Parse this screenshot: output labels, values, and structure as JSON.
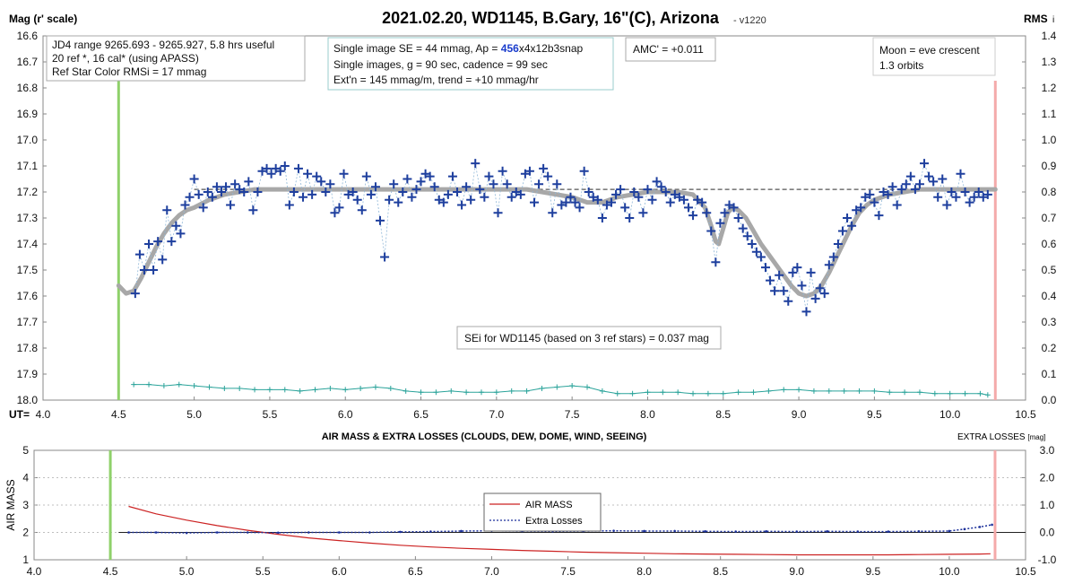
{
  "chart_data": [
    {
      "type": "scatter",
      "title": "2021.02.20, WD1145, B.Gary, 16\"(C), Arizona",
      "version": "- v1220",
      "ylabel": "Mag (r' scale)",
      "y2label": "RMS",
      "y2label_sub": "i",
      "xlabel": "UT=",
      "xlim": [
        4.0,
        10.5
      ],
      "ylim": [
        16.6,
        18.0
      ],
      "y2lim": [
        0.0,
        1.4
      ],
      "x_ticks": [
        "4.0",
        "4.5",
        "5.0",
        "5.5",
        "6.0",
        "6.5",
        "7.0",
        "7.5",
        "8.0",
        "8.5",
        "9.0",
        "9.5",
        "10.0",
        "10.5"
      ],
      "y_ticks": [
        "16.6",
        "16.7",
        "16.8",
        "16.9",
        "17.0",
        "17.1",
        "17.2",
        "17.3",
        "17.4",
        "17.5",
        "17.6",
        "17.7",
        "17.8",
        "17.9",
        "18.0"
      ],
      "y2_ticks": [
        "1.4",
        "1.3",
        "1.2",
        "1.1",
        "1.0",
        "0.9",
        "0.8",
        "0.7",
        "0.6",
        "0.5",
        "0.4",
        "0.3",
        "0.2",
        "0.1",
        "0.0"
      ],
      "reference_magnitude": 17.19,
      "start_marker_ut": 4.5,
      "end_marker_ut": 10.3,
      "annotations": {
        "jd_box": [
          "JD4 range 9265.693 - 9265.927, 5.8 hrs useful",
          " 20 ref *, 16 cal* (using APASS)",
          "Ref Star Color RMSi = 17 mmag"
        ],
        "se_line1_pre": "Single image SE = 44 mmag, Ap = ",
        "se_line1_ap": "456",
        "se_line1_post": "x4x12b3snap",
        "se_line2": "Single images, g = 90 sec, cadence = 99 sec",
        "se_line3": "Ext'n = 145 mmag/m, trend = +10 mmag/hr",
        "amc": "AMC' = +0.011",
        "moon": [
          "Moon = eve crescent",
          "1.3 orbits"
        ],
        "sei": "SEi for WD1145 (based on 3 ref stars) = 0.037 mag"
      },
      "series": [
        {
          "name": "WD1145 magnitude",
          "x": [
            4.61,
            4.64,
            4.67,
            4.7,
            4.73,
            4.76,
            4.79,
            4.82,
            4.85,
            4.88,
            4.91,
            4.94,
            4.97,
            5.0,
            5.03,
            5.06,
            5.09,
            5.12,
            5.15,
            5.18,
            5.21,
            5.24,
            5.27,
            5.3,
            5.33,
            5.36,
            5.39,
            5.42,
            5.45,
            5.48,
            5.51,
            5.54,
            5.57,
            5.6,
            5.63,
            5.66,
            5.69,
            5.72,
            5.75,
            5.78,
            5.81,
            5.84,
            5.87,
            5.9,
            5.93,
            5.96,
            5.99,
            6.02,
            6.05,
            6.08,
            6.11,
            6.14,
            6.17,
            6.2,
            6.23,
            6.26,
            6.29,
            6.32,
            6.35,
            6.38,
            6.41,
            6.44,
            6.47,
            6.5,
            6.53,
            6.56,
            6.59,
            6.62,
            6.65,
            6.68,
            6.71,
            6.74,
            6.77,
            6.8,
            6.83,
            6.86,
            6.89,
            6.92,
            6.95,
            6.98,
            7.01,
            7.04,
            7.07,
            7.1,
            7.13,
            7.16,
            7.19,
            7.22,
            7.25,
            7.28,
            7.31,
            7.34,
            7.37,
            7.4,
            7.43,
            7.46,
            7.49,
            7.52,
            7.55,
            7.58,
            7.61,
            7.64,
            7.67,
            7.7,
            7.73,
            7.76,
            7.79,
            7.82,
            7.85,
            7.88,
            7.91,
            7.94,
            7.97,
            8.0,
            8.03,
            8.06,
            8.09,
            8.12,
            8.15,
            8.18,
            8.21,
            8.24,
            8.27,
            8.3,
            8.33,
            8.36,
            8.39,
            8.42,
            8.45,
            8.48,
            8.51,
            8.54,
            8.57,
            8.6,
            8.63,
            8.66,
            8.69,
            8.72,
            8.75,
            8.78,
            8.81,
            8.84,
            8.87,
            8.9,
            8.93,
            8.96,
            8.99,
            9.02,
            9.05,
            9.08,
            9.11,
            9.14,
            9.17,
            9.2,
            9.23,
            9.26,
            9.29,
            9.32,
            9.35,
            9.38,
            9.41,
            9.44,
            9.47,
            9.5,
            9.53,
            9.56,
            9.59,
            9.62,
            9.65,
            9.68,
            9.71,
            9.74,
            9.77,
            9.8,
            9.83,
            9.86,
            9.89,
            9.92,
            9.95,
            9.98,
            10.01,
            10.04,
            10.07,
            10.1,
            10.13,
            10.16,
            10.19,
            10.22,
            10.25
          ],
          "y": [
            17.59,
            17.44,
            17.5,
            17.4,
            17.5,
            17.39,
            17.46,
            17.27,
            17.39,
            17.33,
            17.36,
            17.25,
            17.22,
            17.15,
            17.21,
            17.26,
            17.2,
            17.22,
            17.18,
            17.2,
            17.18,
            17.25,
            17.17,
            17.19,
            17.2,
            17.16,
            17.27,
            17.2,
            17.12,
            17.11,
            17.13,
            17.11,
            17.12,
            17.1,
            17.25,
            17.2,
            17.11,
            17.22,
            17.13,
            17.21,
            17.14,
            17.16,
            17.2,
            17.17,
            17.28,
            17.26,
            17.13,
            17.21,
            17.2,
            17.23,
            17.27,
            17.14,
            17.21,
            17.18,
            17.31,
            17.45,
            17.23,
            17.17,
            17.24,
            17.2,
            17.15,
            17.22,
            17.19,
            17.16,
            17.13,
            17.14,
            17.18,
            17.23,
            17.24,
            17.21,
            17.14,
            17.2,
            17.25,
            17.18,
            17.23,
            17.09,
            17.19,
            17.22,
            17.14,
            17.17,
            17.28,
            17.12,
            17.17,
            17.22,
            17.2,
            17.21,
            17.13,
            17.12,
            17.24,
            17.17,
            17.11,
            17.14,
            17.28,
            17.17,
            17.25,
            17.24,
            17.22,
            17.24,
            17.26,
            17.12,
            17.2,
            17.22,
            17.23,
            17.3,
            17.25,
            17.24,
            17.21,
            17.19,
            17.26,
            17.3,
            17.2,
            17.22,
            17.28,
            17.19,
            17.23,
            17.16,
            17.18,
            17.2,
            17.24,
            17.21,
            17.22,
            17.23,
            17.26,
            17.29,
            17.23,
            17.24,
            17.28,
            17.35,
            17.47,
            17.32,
            17.28,
            17.25,
            17.26,
            17.3,
            17.34,
            17.37,
            17.4,
            17.43,
            17.45,
            17.49,
            17.54,
            17.58,
            17.52,
            17.58,
            17.62,
            17.51,
            17.49,
            17.56,
            17.66,
            17.51,
            17.61,
            17.57,
            17.59,
            17.48,
            17.45,
            17.4,
            17.35,
            17.3,
            17.33,
            17.27,
            17.26,
            17.22,
            17.21,
            17.24,
            17.29,
            17.2,
            17.21,
            17.18,
            17.25,
            17.19,
            17.17,
            17.14,
            17.19,
            17.17,
            17.09,
            17.14,
            17.16,
            17.22,
            17.15,
            17.25,
            17.2,
            17.22,
            17.13,
            17.2,
            17.24,
            17.22,
            17.2,
            17.22,
            17.21
          ]
        },
        {
          "name": "Model fit",
          "x": [
            4.5,
            4.55,
            4.6,
            4.65,
            4.7,
            4.75,
            4.8,
            4.85,
            4.9,
            4.95,
            5.0,
            5.1,
            5.2,
            5.3,
            5.4,
            5.5,
            5.6,
            5.8,
            6.0,
            6.2,
            6.4,
            6.6,
            6.8,
            7.0,
            7.2,
            7.3,
            7.4,
            7.5,
            7.6,
            7.7,
            7.8,
            7.9,
            8.0,
            8.1,
            8.2,
            8.3,
            8.38,
            8.42,
            8.45,
            8.47,
            8.5,
            8.53,
            8.56,
            8.6,
            8.65,
            8.7,
            8.75,
            8.8,
            8.85,
            8.9,
            8.95,
            9.0,
            9.05,
            9.1,
            9.15,
            9.2,
            9.25,
            9.3,
            9.35,
            9.4,
            9.45,
            9.5,
            9.6,
            9.7,
            9.8,
            9.9,
            10.0,
            10.1,
            10.2,
            10.3
          ],
          "y": [
            17.56,
            17.59,
            17.58,
            17.53,
            17.47,
            17.41,
            17.36,
            17.32,
            17.29,
            17.27,
            17.26,
            17.23,
            17.21,
            17.2,
            17.19,
            17.19,
            17.19,
            17.19,
            17.19,
            17.19,
            17.19,
            17.19,
            17.19,
            17.19,
            17.19,
            17.2,
            17.21,
            17.22,
            17.24,
            17.24,
            17.22,
            17.21,
            17.2,
            17.2,
            17.2,
            17.21,
            17.26,
            17.33,
            17.39,
            17.4,
            17.34,
            17.28,
            17.26,
            17.27,
            17.3,
            17.35,
            17.4,
            17.44,
            17.48,
            17.52,
            17.56,
            17.59,
            17.6,
            17.59,
            17.56,
            17.51,
            17.45,
            17.39,
            17.33,
            17.28,
            17.25,
            17.23,
            17.21,
            17.2,
            17.19,
            17.19,
            17.19,
            17.19,
            17.19,
            17.19
          ]
        },
        {
          "name": "RMSi",
          "x": [
            4.6,
            4.7,
            4.8,
            4.9,
            5.0,
            5.1,
            5.2,
            5.3,
            5.4,
            5.5,
            5.6,
            5.7,
            5.8,
            5.9,
            6.0,
            6.1,
            6.2,
            6.3,
            6.4,
            6.5,
            6.6,
            6.7,
            6.8,
            6.9,
            7.0,
            7.1,
            7.2,
            7.3,
            7.4,
            7.5,
            7.6,
            7.7,
            7.8,
            7.9,
            8.0,
            8.1,
            8.2,
            8.3,
            8.4,
            8.5,
            8.6,
            8.7,
            8.8,
            8.9,
            9.0,
            9.1,
            9.2,
            9.3,
            9.4,
            9.5,
            9.6,
            9.7,
            9.8,
            9.9,
            10.0,
            10.1,
            10.2,
            10.25
          ],
          "y": [
            0.06,
            0.06,
            0.055,
            0.06,
            0.055,
            0.05,
            0.045,
            0.045,
            0.04,
            0.04,
            0.04,
            0.035,
            0.04,
            0.045,
            0.04,
            0.045,
            0.05,
            0.045,
            0.035,
            0.03,
            0.03,
            0.035,
            0.03,
            0.03,
            0.03,
            0.035,
            0.035,
            0.045,
            0.05,
            0.055,
            0.05,
            0.035,
            0.025,
            0.025,
            0.03,
            0.03,
            0.03,
            0.025,
            0.025,
            0.025,
            0.03,
            0.03,
            0.035,
            0.04,
            0.04,
            0.035,
            0.035,
            0.035,
            0.035,
            0.035,
            0.03,
            0.03,
            0.03,
            0.025,
            0.025,
            0.025,
            0.025,
            0.02
          ]
        }
      ]
    },
    {
      "type": "line",
      "title": "AIR MASS & EXTRA LOSSES (CLOUDS, DEW, DOME, WIND, SEEING)",
      "ylabel": "AIR MASS",
      "y2label": "EXTRA LOSSES",
      "y2unit": "[mag]",
      "xlim": [
        4.0,
        10.5
      ],
      "ylim": [
        1,
        5
      ],
      "y2lim": [
        3.0,
        -1.0
      ],
      "x_ticks": [
        "4.0",
        "4.5",
        "5.0",
        "5.5",
        "6.0",
        "6.5",
        "7.0",
        "7.5",
        "8.0",
        "8.5",
        "9.0",
        "9.5",
        "10.0",
        "10.5"
      ],
      "y_ticks": [
        "5",
        "4",
        "3",
        "2",
        "1"
      ],
      "y2_ticks": [
        "-1.0",
        "0.0",
        "1.0",
        "2.0",
        "3.0"
      ],
      "start_marker_ut": 4.5,
      "end_marker_ut": 10.3,
      "legend_placement": "center",
      "series": [
        {
          "name": "AIR MASS",
          "color": "#cc2222",
          "x": [
            4.62,
            4.8,
            5.0,
            5.2,
            5.4,
            5.6,
            5.8,
            6.0,
            6.2,
            6.4,
            6.6,
            6.8,
            7.0,
            7.2,
            7.4,
            7.6,
            7.8,
            8.0,
            8.2,
            8.4,
            8.6,
            8.8,
            9.0,
            9.2,
            9.4,
            9.6,
            9.8,
            10.0,
            10.2,
            10.27
          ],
          "y": [
            2.95,
            2.68,
            2.45,
            2.25,
            2.08,
            1.93,
            1.8,
            1.7,
            1.61,
            1.53,
            1.47,
            1.42,
            1.38,
            1.34,
            1.31,
            1.28,
            1.26,
            1.24,
            1.22,
            1.21,
            1.2,
            1.19,
            1.18,
            1.18,
            1.18,
            1.18,
            1.19,
            1.2,
            1.21,
            1.22
          ]
        },
        {
          "name": "Extra Losses",
          "color": "#1a2f9a",
          "x": [
            4.62,
            4.8,
            5.0,
            5.2,
            5.4,
            5.6,
            5.8,
            6.0,
            6.2,
            6.4,
            6.6,
            6.8,
            7.0,
            7.2,
            7.4,
            7.6,
            7.8,
            8.0,
            8.2,
            8.4,
            8.6,
            8.8,
            9.0,
            9.2,
            9.4,
            9.6,
            9.8,
            10.0,
            10.1,
            10.2,
            10.28
          ],
          "y": [
            0.0,
            0.0,
            -0.02,
            0.0,
            0.0,
            -0.01,
            0.0,
            0.0,
            0.0,
            0.02,
            0.03,
            0.05,
            0.06,
            0.05,
            0.04,
            0.05,
            0.06,
            0.05,
            0.05,
            0.04,
            0.03,
            0.04,
            0.03,
            0.04,
            0.03,
            0.03,
            0.04,
            0.05,
            0.12,
            0.2,
            0.28
          ]
        }
      ]
    }
  ]
}
